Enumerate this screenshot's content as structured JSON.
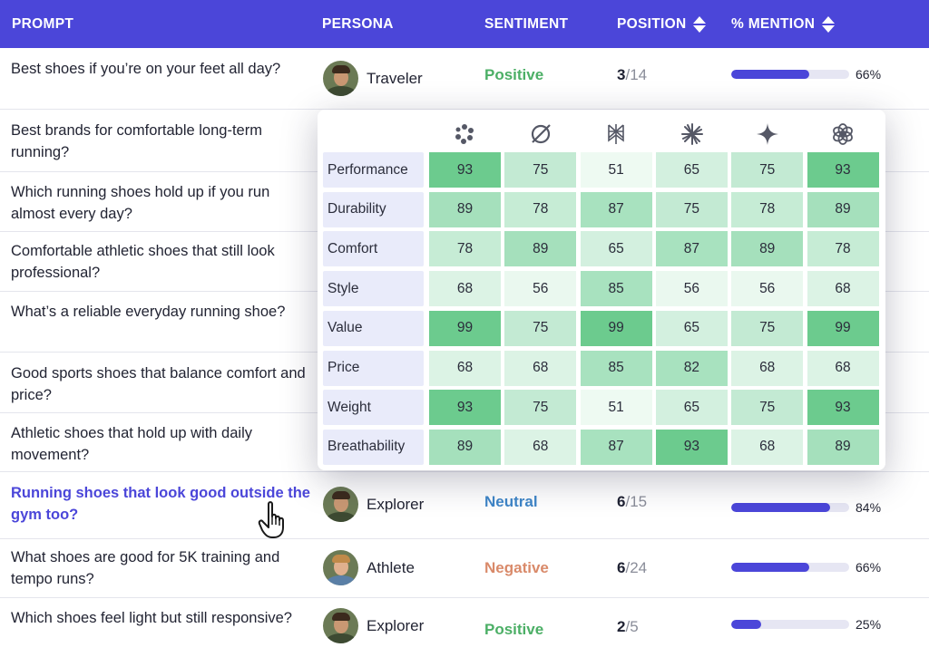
{
  "header": {
    "prompt": "PROMPT",
    "persona": "PERSONA",
    "sentiment": "SENTIMENT",
    "position": "POSITION",
    "mention": "% MENTION"
  },
  "colors": {
    "accent": "#4b46d9",
    "positive": "#4caf66",
    "neutral": "#3f86c8",
    "negative": "#d98a6a"
  },
  "rows": [
    {
      "prompt": "Best shoes if you’re on your feet all day?",
      "persona": "Traveler",
      "sentiment": "Positive",
      "position": "3",
      "total": "/14",
      "mention_label": "66%",
      "mention": 66
    },
    {
      "prompt": "Best brands for comfortable long-term running?"
    },
    {
      "prompt": "Which running shoes hold up if you run almost every day?"
    },
    {
      "prompt": "Comfortable athletic shoes that still look professional?"
    },
    {
      "prompt": "What’s a reliable everyday running shoe?"
    },
    {
      "prompt": "Good sports shoes that balance comfort and price?"
    },
    {
      "prompt": "Athletic shoes that hold up with daily movement?"
    },
    {
      "prompt": "Running shoes that look good outside the gym too?",
      "persona": "Explorer",
      "sentiment": "Neutral",
      "position": "6",
      "total": "/15",
      "mention_label": "84%",
      "mention": 84
    },
    {
      "prompt": "What shoes are good for 5K training and tempo runs?",
      "persona": "Athlete",
      "sentiment": "Negative",
      "position": "6",
      "total": "/24",
      "mention_label": "66%",
      "mention": 66
    },
    {
      "prompt": "Which shoes feel light but still responsive?",
      "persona": "Explorer",
      "sentiment": "Positive",
      "position": "2",
      "total": "/5",
      "mention_label": "25%",
      "mention": 25
    }
  ],
  "popup": {
    "models": [
      "perplexity-like-icon",
      "grok-icon",
      "perplexity-icon",
      "claude-icon",
      "gemini-icon",
      "openai-icon"
    ],
    "attributes": [
      {
        "label": "Performance",
        "values": [
          "93",
          "75",
          "51",
          "65",
          "75",
          "93"
        ]
      },
      {
        "label": "Durability",
        "values": [
          "89",
          "78",
          "87",
          "75",
          "78",
          "89"
        ]
      },
      {
        "label": "Comfort",
        "values": [
          "78",
          "89",
          "65",
          "87",
          "89",
          "78"
        ]
      },
      {
        "label": "Style",
        "values": [
          "68",
          "56",
          "85",
          "56",
          "56",
          "68"
        ]
      },
      {
        "label": "Value",
        "values": [
          "99",
          "75",
          "99",
          "65",
          "75",
          "99"
        ]
      },
      {
        "label": "Price",
        "values": [
          "68",
          "68",
          "85",
          "82",
          "68",
          "68"
        ]
      },
      {
        "label": "Weight",
        "values": [
          "93",
          "75",
          "51",
          "65",
          "75",
          "93"
        ]
      },
      {
        "label": "Breathability",
        "values": [
          "89",
          "68",
          "87",
          "93",
          "68",
          "89"
        ]
      }
    ]
  }
}
